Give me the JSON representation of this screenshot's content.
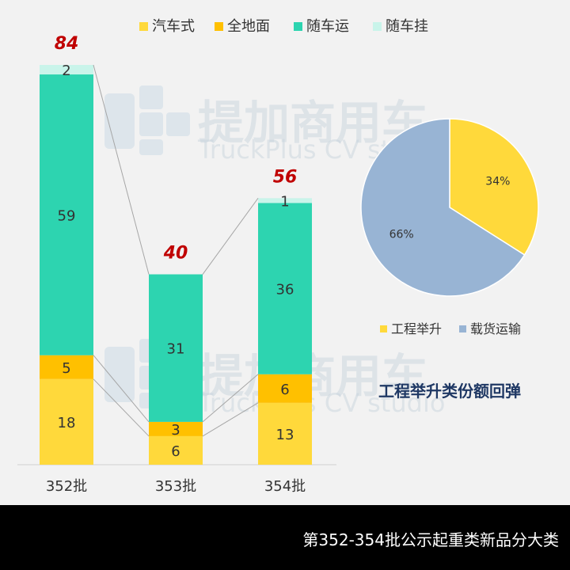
{
  "chart_data": [
    {
      "type": "bar",
      "stacked": true,
      "categories": [
        "352批",
        "353批",
        "354批"
      ],
      "series": [
        {
          "name": "汽车式",
          "color": "#ffd93b",
          "values": [
            18,
            6,
            13
          ]
        },
        {
          "name": "全地面",
          "color": "#ffc000",
          "values": [
            5,
            3,
            6
          ]
        },
        {
          "name": "随车运",
          "color": "#2dd4b0",
          "values": [
            59,
            31,
            36
          ]
        },
        {
          "name": "随车挂",
          "color": "#c9f4ea",
          "values": [
            2,
            0,
            1
          ]
        }
      ],
      "totals": [
        "84",
        "40",
        "56"
      ],
      "legend_position": "top",
      "ylim": [
        0,
        84
      ],
      "grid": false
    },
    {
      "type": "pie",
      "slices": [
        {
          "name": "工程举升",
          "label": "34%",
          "value": 34,
          "color": "#ffd93b"
        },
        {
          "name": "载货运输",
          "label": "66%",
          "value": 66,
          "color": "#98b4d4"
        }
      ],
      "legend_position": "bottom",
      "annotation": "工程举升类份额回弹"
    }
  ],
  "watermark": {
    "brand": "提加商用车",
    "sub": "TruckPlus CV studio"
  },
  "footer": {
    "title": "第352-354批公示起重类新品分大类"
  }
}
